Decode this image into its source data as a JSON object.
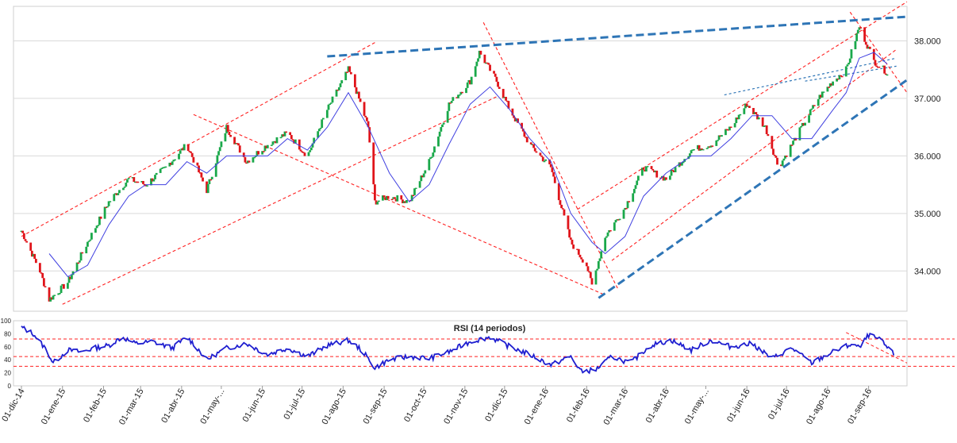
{
  "chart_data": [
    {
      "type": "candlestick",
      "ylim": [
        33300,
        38600
      ],
      "y_ticks": [
        34000,
        35000,
        36000,
        37000,
        38000
      ],
      "y_tick_labels": [
        "34.000",
        "35.000",
        "36.000",
        "37.000",
        "38.000"
      ],
      "grid": true,
      "up_color": "#1aa84a",
      "down_color": "#e0141a",
      "ma_color": "#4040e0",
      "trend_color": "#2e75b6",
      "channel_color": "#ff2020",
      "price_path": {
        "dates": [
          "2014-12-01",
          "2014-12-15",
          "2014-12-22",
          "2015-01-05",
          "2015-01-20",
          "2015-02-05",
          "2015-02-20",
          "2015-03-05",
          "2015-03-20",
          "2015-04-05",
          "2015-04-20",
          "2015-05-05",
          "2015-05-20",
          "2015-06-05",
          "2015-06-20",
          "2015-07-05",
          "2015-07-20",
          "2015-08-05",
          "2015-08-10",
          "2015-08-20",
          "2015-08-25",
          "2015-09-05",
          "2015-09-20",
          "2015-10-05",
          "2015-10-20",
          "2015-11-05",
          "2015-11-12",
          "2015-11-25",
          "2015-12-05",
          "2015-12-20",
          "2016-01-05",
          "2016-01-20",
          "2016-02-01",
          "2016-02-05",
          "2016-02-15",
          "2016-03-01",
          "2016-03-15",
          "2016-04-01",
          "2016-04-20",
          "2016-05-05",
          "2016-05-20",
          "2016-06-01",
          "2016-06-15",
          "2016-06-25",
          "2016-07-10",
          "2016-07-25",
          "2016-08-05",
          "2016-08-15",
          "2016-08-25",
          "2016-09-05",
          "2016-09-15"
        ],
        "closes": [
          34700,
          34000,
          33500,
          33800,
          34500,
          35200,
          35600,
          35500,
          35800,
          36200,
          35400,
          36500,
          35900,
          36200,
          36400,
          36000,
          36800,
          37500,
          37200,
          36500,
          35200,
          35300,
          35200,
          35900,
          36900,
          37300,
          37800,
          37300,
          36800,
          36200,
          35800,
          34500,
          34100,
          33750,
          34600,
          35100,
          35800,
          35600,
          36100,
          36200,
          36500,
          36900,
          36500,
          35800,
          36400,
          37000,
          37300,
          37500,
          38250,
          37650,
          37450
        ]
      },
      "ma_path": {
        "dates": [
          "2014-12-22",
          "2015-01-05",
          "2015-01-20",
          "2015-02-05",
          "2015-02-20",
          "2015-03-05",
          "2015-03-20",
          "2015-04-05",
          "2015-04-20",
          "2015-05-05",
          "2015-05-20",
          "2015-06-05",
          "2015-06-20",
          "2015-07-05",
          "2015-07-20",
          "2015-08-05",
          "2015-08-20",
          "2015-09-05",
          "2015-09-20",
          "2015-10-05",
          "2015-10-20",
          "2015-11-05",
          "2015-11-20",
          "2015-12-05",
          "2015-12-20",
          "2016-01-05",
          "2016-01-20",
          "2016-02-05",
          "2016-02-15",
          "2016-03-01",
          "2016-03-15",
          "2016-04-01",
          "2016-04-20",
          "2016-05-05",
          "2016-05-20",
          "2016-06-05",
          "2016-06-20",
          "2016-07-05",
          "2016-07-20",
          "2016-08-05",
          "2016-08-15",
          "2016-08-25",
          "2016-09-05",
          "2016-09-15"
        ],
        "values": [
          34300,
          33900,
          34100,
          34800,
          35300,
          35500,
          35500,
          35900,
          35700,
          36000,
          36000,
          36000,
          36300,
          36100,
          36500,
          37100,
          36500,
          35700,
          35200,
          35500,
          36200,
          36900,
          37200,
          36800,
          36300,
          35900,
          35000,
          34500,
          34300,
          34600,
          35300,
          35700,
          36000,
          36000,
          36300,
          36700,
          36700,
          36300,
          36300,
          36800,
          37100,
          37700,
          37800,
          37600
        ]
      },
      "trend_lines": [
        {
          "kind": "dashed-blue",
          "from": [
            "2015-07-20",
            37730
          ],
          "to": [
            "2016-09-30",
            38420
          ]
        },
        {
          "kind": "dashed-blue",
          "from": [
            "2016-02-10",
            33530
          ],
          "to": [
            "2016-09-30",
            37320
          ]
        },
        {
          "kind": "dotted-blue",
          "from": [
            "2016-05-15",
            37060
          ],
          "to": [
            "2016-09-22",
            37700
          ]
        },
        {
          "kind": "dotted-blue",
          "from": [
            "2016-07-15",
            37300
          ],
          "to": [
            "2016-09-22",
            37560
          ]
        }
      ],
      "channel_lines": [
        {
          "from": [
            "2014-12-01",
            34600
          ],
          "to": [
            "2015-08-25",
            37970
          ]
        },
        {
          "from": [
            "2015-01-01",
            33420
          ],
          "to": [
            "2015-11-25",
            37030
          ]
        },
        {
          "from": [
            "2015-04-10",
            36720
          ],
          "to": [
            "2016-02-15",
            33580
          ]
        },
        {
          "from": [
            "2015-11-15",
            38320
          ],
          "to": [
            "2016-02-25",
            33670
          ]
        },
        {
          "from": [
            "2016-01-25",
            35070
          ],
          "to": [
            "2016-09-30",
            38680
          ]
        },
        {
          "from": [
            "2016-02-20",
            34180
          ],
          "to": [
            "2016-09-22",
            37850
          ]
        },
        {
          "from": [
            "2016-08-18",
            38500
          ],
          "to": [
            "2016-09-30",
            37100
          ]
        }
      ]
    },
    {
      "type": "line",
      "title": "RSI (14 periodos)",
      "ylim": [
        0,
        100
      ],
      "y_ticks": [
        0,
        20,
        40,
        60,
        80,
        100
      ],
      "y_tick_labels": [
        "0",
        "20",
        "40",
        "60",
        "80",
        "100"
      ],
      "x_tick_labels": [
        "01-dic-14",
        "01-ene-15",
        "01-feb-15",
        "01-mar-15",
        "01-abr-15",
        "01-may-...",
        "01-jun-15",
        "01-jul-15",
        "01-ago-15",
        "01-sep-15",
        "01-oct-15",
        "01-nov-15",
        "01-dic-15",
        "01-ene-16",
        "01-feb-16",
        "01-mar-16",
        "01-abr-16",
        "01-may-...",
        "01-jun-16",
        "01-jul-16",
        "01-ago-16",
        "01-sep-16"
      ],
      "x_tick_dates": [
        "2014-12-01",
        "2015-01-01",
        "2015-02-01",
        "2015-03-01",
        "2015-04-01",
        "2015-05-01",
        "2015-06-01",
        "2015-07-01",
        "2015-08-01",
        "2015-09-01",
        "2015-10-01",
        "2015-11-01",
        "2015-12-01",
        "2016-01-01",
        "2016-02-01",
        "2016-03-01",
        "2016-04-01",
        "2016-05-01",
        "2016-06-01",
        "2016-07-01",
        "2016-08-01",
        "2016-09-01"
      ],
      "rsi_color": "#1f1fd0",
      "reference_levels": [
        72,
        45,
        30
      ],
      "series": {
        "dates": [
          "2014-12-01",
          "2014-12-10",
          "2014-12-20",
          "2014-12-25",
          "2015-01-05",
          "2015-01-15",
          "2015-01-25",
          "2015-02-05",
          "2015-02-15",
          "2015-02-25",
          "2015-03-10",
          "2015-03-25",
          "2015-04-05",
          "2015-04-12",
          "2015-04-20",
          "2015-05-05",
          "2015-05-20",
          "2015-06-05",
          "2015-06-20",
          "2015-07-05",
          "2015-07-20",
          "2015-08-05",
          "2015-08-15",
          "2015-08-25",
          "2015-09-05",
          "2015-09-20",
          "2015-10-05",
          "2015-10-20",
          "2015-11-05",
          "2015-11-20",
          "2015-12-05",
          "2015-12-20",
          "2016-01-05",
          "2016-01-20",
          "2016-01-28",
          "2016-02-08",
          "2016-02-20",
          "2016-03-05",
          "2016-03-20",
          "2016-04-05",
          "2016-04-20",
          "2016-05-05",
          "2016-05-20",
          "2016-06-05",
          "2016-06-20",
          "2016-07-05",
          "2016-07-20",
          "2016-08-05",
          "2016-08-20",
          "2016-08-25",
          "2016-09-01",
          "2016-09-10",
          "2016-09-20"
        ],
        "values": [
          90,
          80,
          55,
          35,
          55,
          52,
          58,
          62,
          75,
          65,
          68,
          58,
          75,
          60,
          40,
          58,
          65,
          48,
          58,
          45,
          62,
          70,
          55,
          28,
          40,
          45,
          42,
          52,
          68,
          75,
          60,
          48,
          32,
          45,
          22,
          25,
          45,
          35,
          62,
          70,
          55,
          70,
          60,
          65,
          42,
          58,
          35,
          52,
          65,
          58,
          78,
          70,
          48
        ]
      },
      "trend_lines": [
        {
          "from": [
            "2016-08-15",
            82
          ],
          "to": [
            "2016-09-30",
            35
          ]
        }
      ]
    }
  ]
}
